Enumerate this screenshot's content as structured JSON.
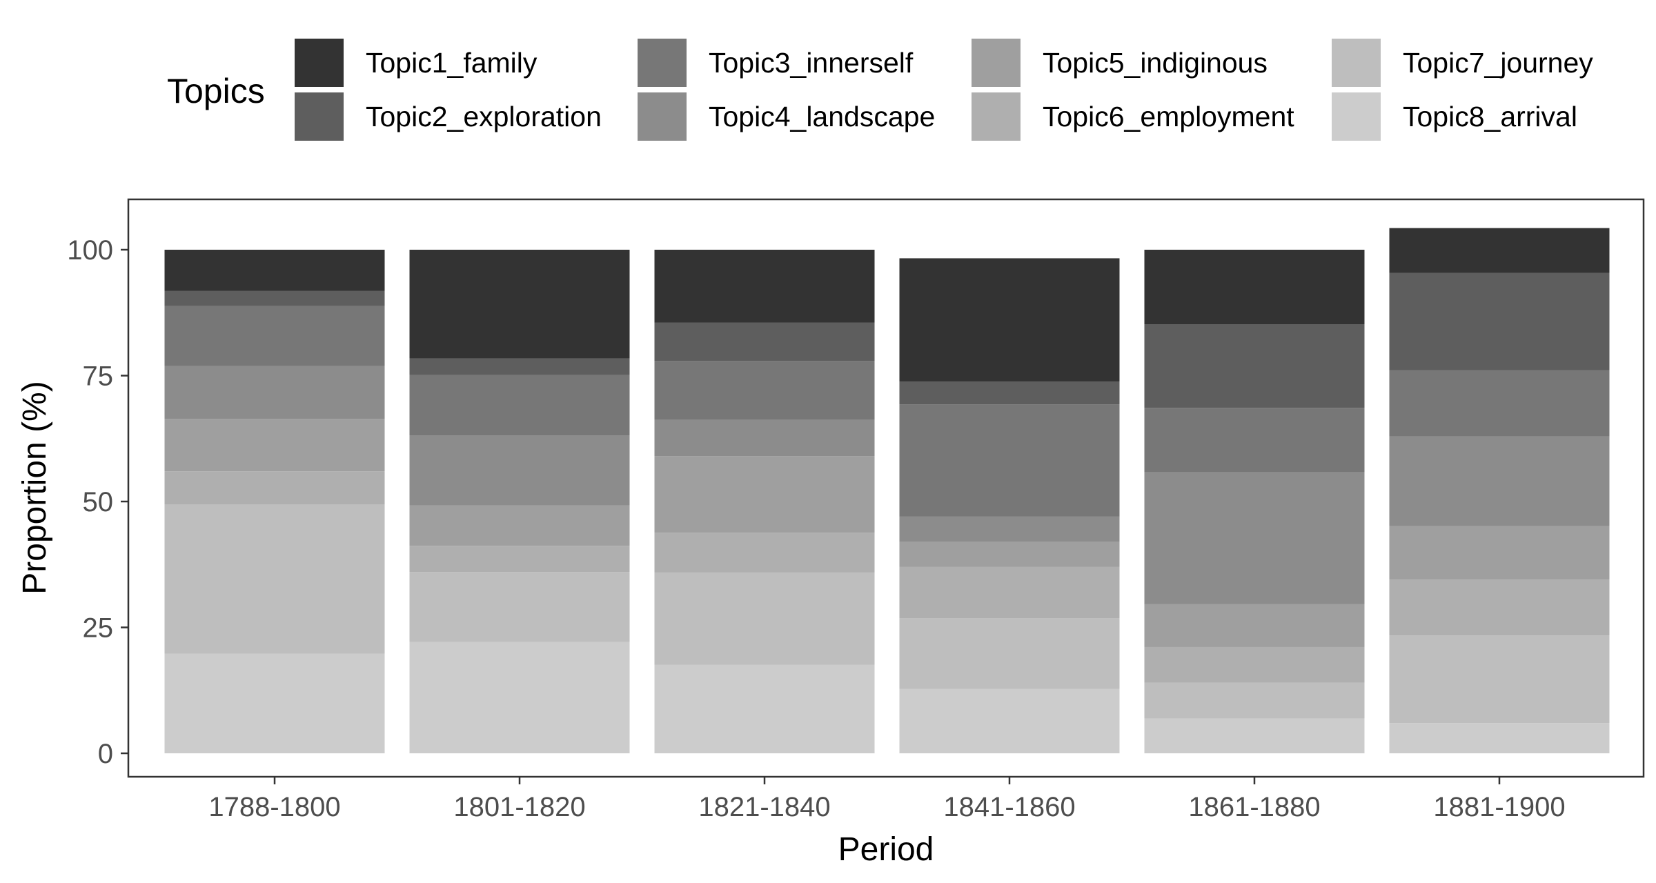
{
  "chart_data": {
    "type": "bar",
    "stacked": true,
    "xlabel": "Period",
    "ylabel": "Proportion (%)",
    "ylim": [
      0,
      100
    ],
    "yticks": [
      0,
      25,
      50,
      75,
      100
    ],
    "legend_title": "Topics",
    "legend_position": "top",
    "grid": false,
    "categories": [
      "1788-1800",
      "1801-1820",
      "1821-1840",
      "1841-1860",
      "1861-1880",
      "1881-1900"
    ],
    "series": [
      {
        "name": "Topic1_family",
        "color": "#333333",
        "values": [
          8.2,
          21.6,
          14.5,
          24.5,
          14.8,
          8.9
        ]
      },
      {
        "name": "Topic2_exploration",
        "color": "#5e5e5e",
        "values": [
          3.0,
          3.3,
          7.6,
          4.5,
          16.6,
          19.3
        ]
      },
      {
        "name": "Topic3_innerself",
        "color": "#777777",
        "values": [
          11.9,
          12.0,
          11.7,
          22.3,
          12.8,
          13.2
        ]
      },
      {
        "name": "Topic4_landscape",
        "color": "#8c8c8c",
        "values": [
          10.5,
          13.9,
          7.2,
          5.0,
          26.2,
          17.8
        ]
      },
      {
        "name": "Topic5_indiginous",
        "color": "#9f9f9f",
        "values": [
          10.4,
          8.0,
          15.2,
          5.0,
          8.5,
          10.6
        ]
      },
      {
        "name": "Topic6_employment",
        "color": "#afafaf",
        "values": [
          6.6,
          5.2,
          7.9,
          10.2,
          7.1,
          11.1
        ]
      },
      {
        "name": "Topic7_journey",
        "color": "#bebebe",
        "values": [
          29.6,
          13.9,
          18.3,
          14.0,
          7.1,
          17.4
        ]
      },
      {
        "name": "Topic8_arrival",
        "color": "#cccccc",
        "values": [
          19.8,
          22.1,
          17.6,
          12.8,
          6.9,
          6.0
        ]
      }
    ]
  }
}
